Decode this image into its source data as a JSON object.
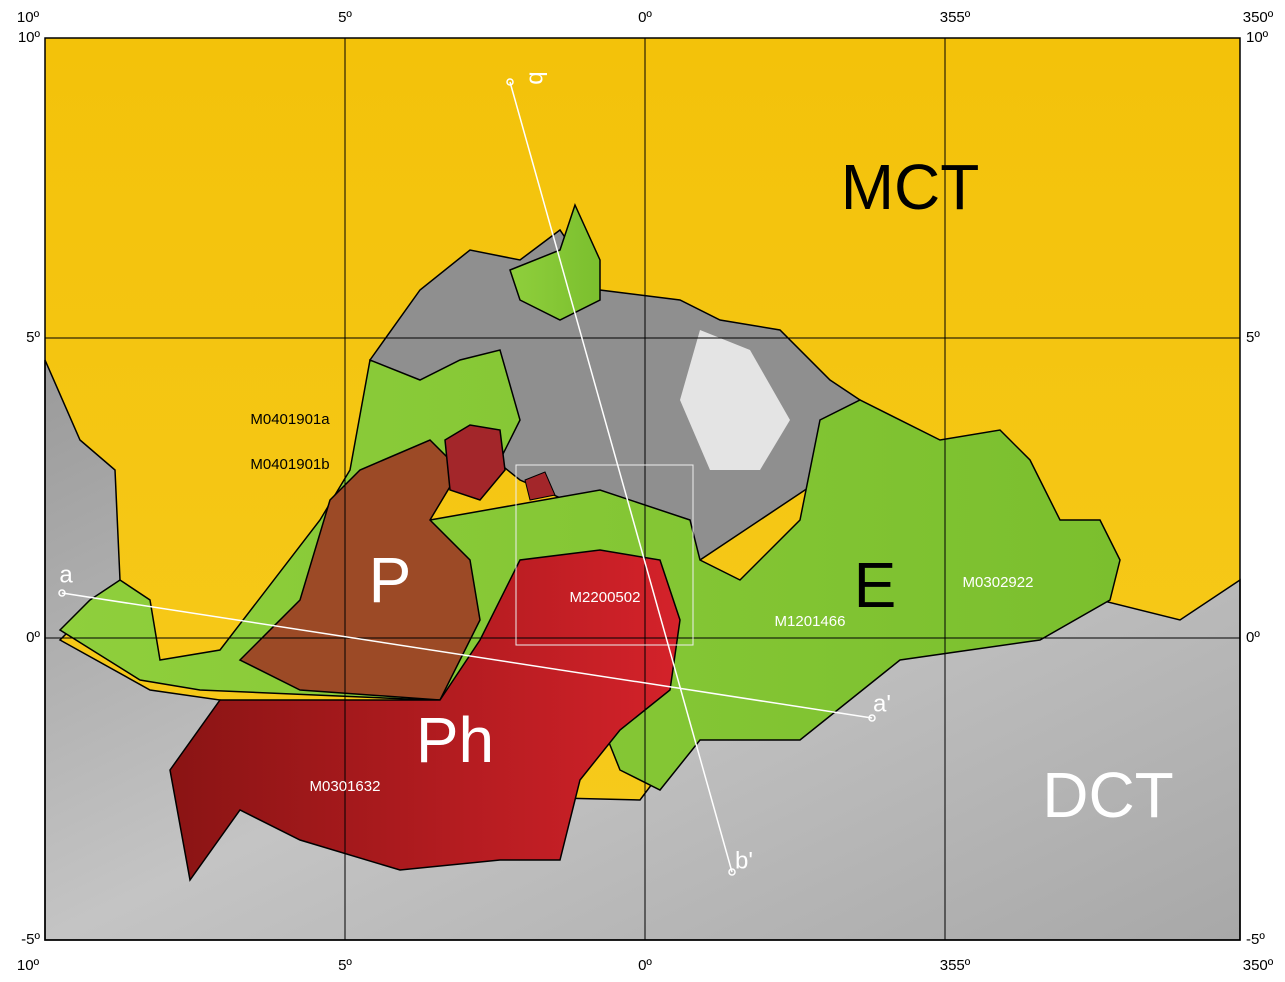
{
  "top_labels": [
    "10º",
    "5º",
    "0º",
    "355º",
    "350º"
  ],
  "bottom_labels": [
    "10º",
    "5º",
    "0º",
    "355º",
    "350º"
  ],
  "left_labels": [
    "10º",
    "5º",
    "0º",
    "-5º"
  ],
  "right_labels": [
    "10º",
    "5º",
    "0º",
    "-5º"
  ],
  "units": [
    "MCT",
    "E",
    "P",
    "Ph",
    "DCT"
  ],
  "images": [
    "M0401901a",
    "M0401901b",
    "M2200502",
    "M1201466",
    "M0302922",
    "M0301632"
  ],
  "profiles": [
    "a",
    "a'",
    "b",
    "b'"
  ]
}
